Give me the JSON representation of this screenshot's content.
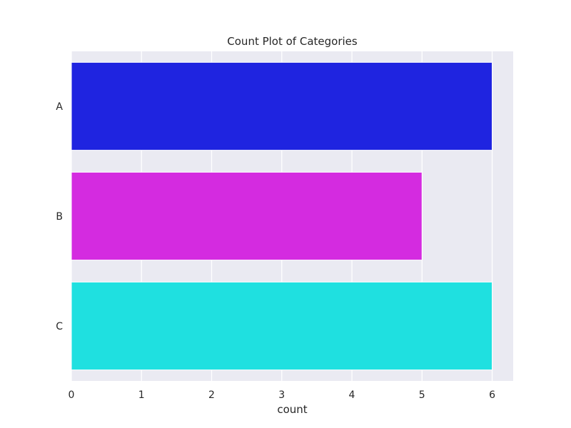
{
  "chart_data": {
    "type": "bar",
    "orientation": "horizontal",
    "title": "Count Plot of Categories",
    "xlabel": "count",
    "ylabel": "",
    "categories": [
      "A",
      "B",
      "C"
    ],
    "values": [
      6,
      5,
      6
    ],
    "colors": [
      "#1f24e0",
      "#d42be0",
      "#1fe0e0"
    ],
    "xlim": [
      0,
      6.3
    ],
    "xticks": [
      0,
      1,
      2,
      3,
      4,
      5,
      6
    ],
    "grid": true,
    "background": "#eaeaf2",
    "legend": "none"
  }
}
